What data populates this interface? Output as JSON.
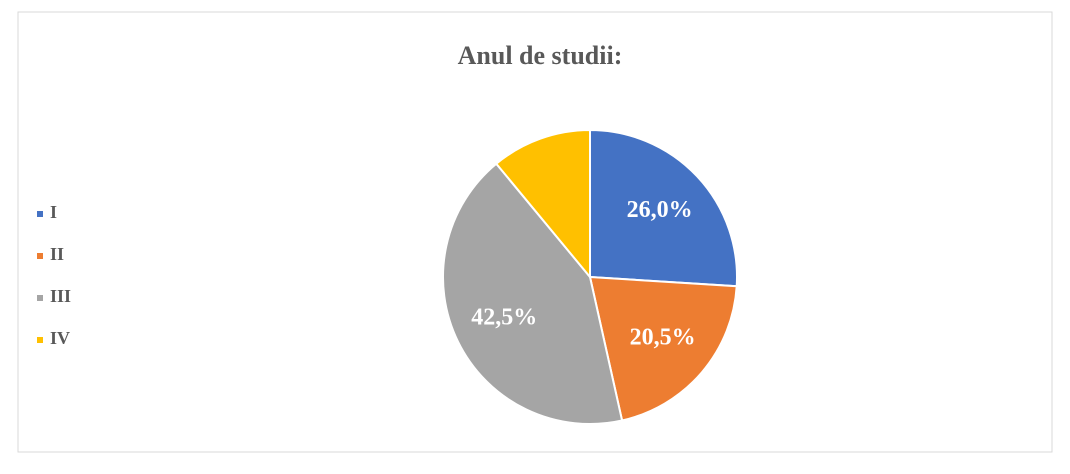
{
  "chart_data": {
    "type": "pie",
    "title": "Anul de studii:",
    "categories": [
      "I",
      "II",
      "III",
      "IV"
    ],
    "values": [
      26.0,
      20.5,
      42.5,
      11.0
    ],
    "value_labels": [
      "26,0%",
      "20,5%",
      "42,5%",
      null
    ],
    "colors": [
      "#4472c4",
      "#ed7d31",
      "#a5a5a5",
      "#ffc000"
    ],
    "legend": "left"
  }
}
